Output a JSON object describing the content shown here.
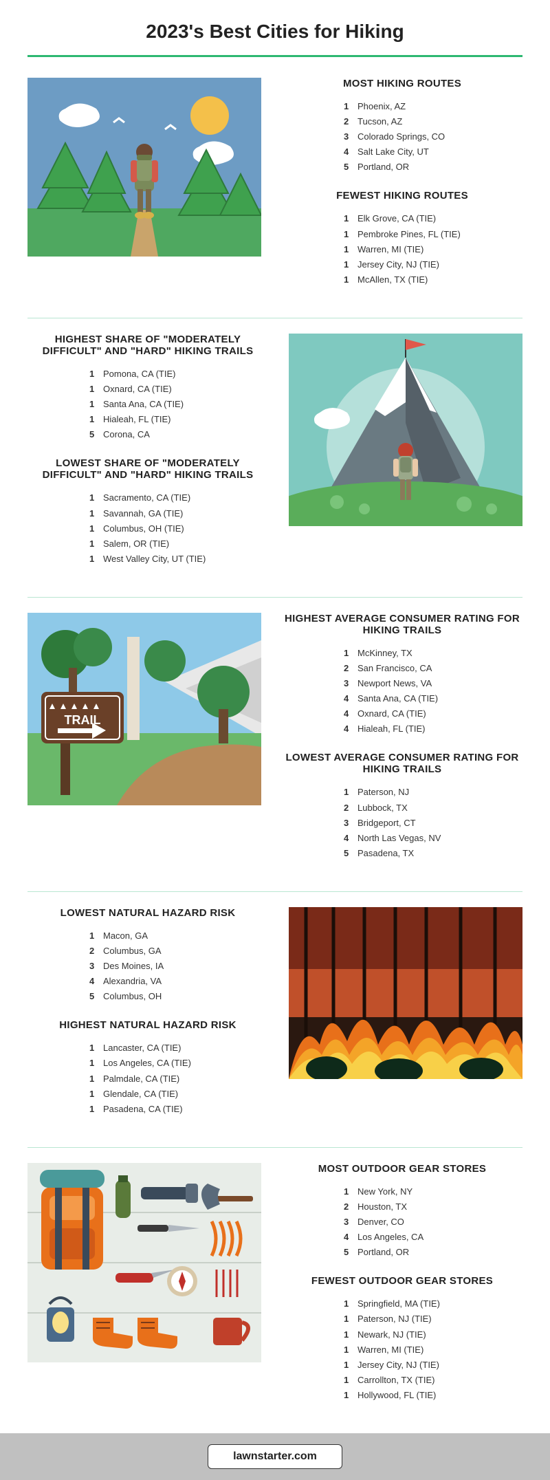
{
  "title": "2023's Best Cities for Hiking",
  "colors": {
    "accent": "#2eb872",
    "rule_light": "#b8e6d1",
    "footer_bg": "#c0c0c0"
  },
  "sections": [
    {
      "layout": "image-left",
      "illustration": "hiker-forest",
      "lists": [
        {
          "title": "MOST HIKING ROUTES",
          "items": [
            {
              "rank": "1",
              "label": "Phoenix, AZ"
            },
            {
              "rank": "2",
              "label": "Tucson, AZ"
            },
            {
              "rank": "3",
              "label": "Colorado Springs, CO"
            },
            {
              "rank": "4",
              "label": "Salt Lake City, UT"
            },
            {
              "rank": "5",
              "label": "Portland, OR"
            }
          ]
        },
        {
          "title": "FEWEST HIKING ROUTES",
          "items": [
            {
              "rank": "1",
              "label": "Elk Grove, CA (TIE)"
            },
            {
              "rank": "1",
              "label": "Pembroke Pines, FL (TIE)"
            },
            {
              "rank": "1",
              "label": "Warren, MI (TIE)"
            },
            {
              "rank": "1",
              "label": "Jersey City, NJ (TIE)"
            },
            {
              "rank": "1",
              "label": "McAllen, TX (TIE)"
            }
          ]
        }
      ]
    },
    {
      "layout": "image-right",
      "illustration": "mountain-peak",
      "lists": [
        {
          "title": "HIGHEST SHARE OF \"MODERATELY DIFFICULT\" AND \"HARD\" HIKING TRAILS",
          "items": [
            {
              "rank": "1",
              "label": "Pomona, CA (TIE)"
            },
            {
              "rank": "1",
              "label": "Oxnard, CA (TIE)"
            },
            {
              "rank": "1",
              "label": "Santa Ana, CA (TIE)"
            },
            {
              "rank": "1",
              "label": "Hialeah, FL (TIE)"
            },
            {
              "rank": "5",
              "label": "Corona, CA"
            }
          ]
        },
        {
          "title": "LOWEST SHARE OF \"MODERATELY DIFFICULT\" AND \"HARD\" HIKING TRAILS",
          "items": [
            {
              "rank": "1",
              "label": "Sacramento, CA (TIE)"
            },
            {
              "rank": "1",
              "label": "Savannah, GA (TIE)"
            },
            {
              "rank": "1",
              "label": "Columbus, OH (TIE)"
            },
            {
              "rank": "1",
              "label": "Salem, OR (TIE)"
            },
            {
              "rank": "1",
              "label": "West Valley City, UT (TIE)"
            }
          ]
        }
      ]
    },
    {
      "layout": "image-left",
      "illustration": "trail-sign",
      "lists": [
        {
          "title": "HIGHEST AVERAGE CONSUMER RATING FOR HIKING TRAILS",
          "items": [
            {
              "rank": "1",
              "label": "McKinney, TX"
            },
            {
              "rank": "2",
              "label": "San Francisco, CA"
            },
            {
              "rank": "3",
              "label": "Newport News, VA"
            },
            {
              "rank": "4",
              "label": "Santa Ana, CA (TIE)"
            },
            {
              "rank": "4",
              "label": "Oxnard, CA (TIE)"
            },
            {
              "rank": "4",
              "label": "Hialeah, FL (TIE)"
            }
          ]
        },
        {
          "title": "LOWEST AVERAGE CONSUMER RATING FOR HIKING TRAILS",
          "items": [
            {
              "rank": "1",
              "label": "Paterson, NJ"
            },
            {
              "rank": "2",
              "label": "Lubbock, TX"
            },
            {
              "rank": "3",
              "label": "Bridgeport, CT"
            },
            {
              "rank": "4",
              "label": "North Las Vegas, NV"
            },
            {
              "rank": "5",
              "label": "Pasadena, TX"
            }
          ]
        }
      ]
    },
    {
      "layout": "image-right",
      "illustration": "forest-fire",
      "lists": [
        {
          "title": "LOWEST NATURAL HAZARD RISK",
          "items": [
            {
              "rank": "1",
              "label": "Macon, GA"
            },
            {
              "rank": "2",
              "label": "Columbus, GA"
            },
            {
              "rank": "3",
              "label": "Des Moines, IA"
            },
            {
              "rank": "4",
              "label": "Alexandria, VA"
            },
            {
              "rank": "5",
              "label": "Columbus, OH"
            }
          ]
        },
        {
          "title": "HIGHEST NATURAL HAZARD RISK",
          "items": [
            {
              "rank": "1",
              "label": "Lancaster, CA (TIE)"
            },
            {
              "rank": "1",
              "label": "Los Angeles, CA (TIE)"
            },
            {
              "rank": "1",
              "label": "Palmdale, CA (TIE)"
            },
            {
              "rank": "1",
              "label": "Glendale, CA (TIE)"
            },
            {
              "rank": "1",
              "label": "Pasadena, CA (TIE)"
            }
          ]
        }
      ]
    },
    {
      "layout": "image-left",
      "illustration": "gear-flatlay",
      "lists": [
        {
          "title": "MOST OUTDOOR GEAR STORES",
          "items": [
            {
              "rank": "1",
              "label": "New York, NY"
            },
            {
              "rank": "2",
              "label": "Houston, TX"
            },
            {
              "rank": "3",
              "label": "Denver, CO"
            },
            {
              "rank": "4",
              "label": "Los Angeles, CA"
            },
            {
              "rank": "5",
              "label": "Portland, OR"
            }
          ]
        },
        {
          "title": "FEWEST OUTDOOR GEAR STORES",
          "items": [
            {
              "rank": "1",
              "label": "Springfield, MA (TIE)"
            },
            {
              "rank": "1",
              "label": "Paterson, NJ (TIE)"
            },
            {
              "rank": "1",
              "label": "Newark, NJ (TIE)"
            },
            {
              "rank": "1",
              "label": "Warren, MI (TIE)"
            },
            {
              "rank": "1",
              "label": "Jersey City, NJ (TIE)"
            },
            {
              "rank": "1",
              "label": "Carrollton, TX (TIE)"
            },
            {
              "rank": "1",
              "label": "Hollywood, FL (TIE)"
            }
          ]
        }
      ]
    }
  ],
  "footer": {
    "label": "lawnstarter.com"
  }
}
